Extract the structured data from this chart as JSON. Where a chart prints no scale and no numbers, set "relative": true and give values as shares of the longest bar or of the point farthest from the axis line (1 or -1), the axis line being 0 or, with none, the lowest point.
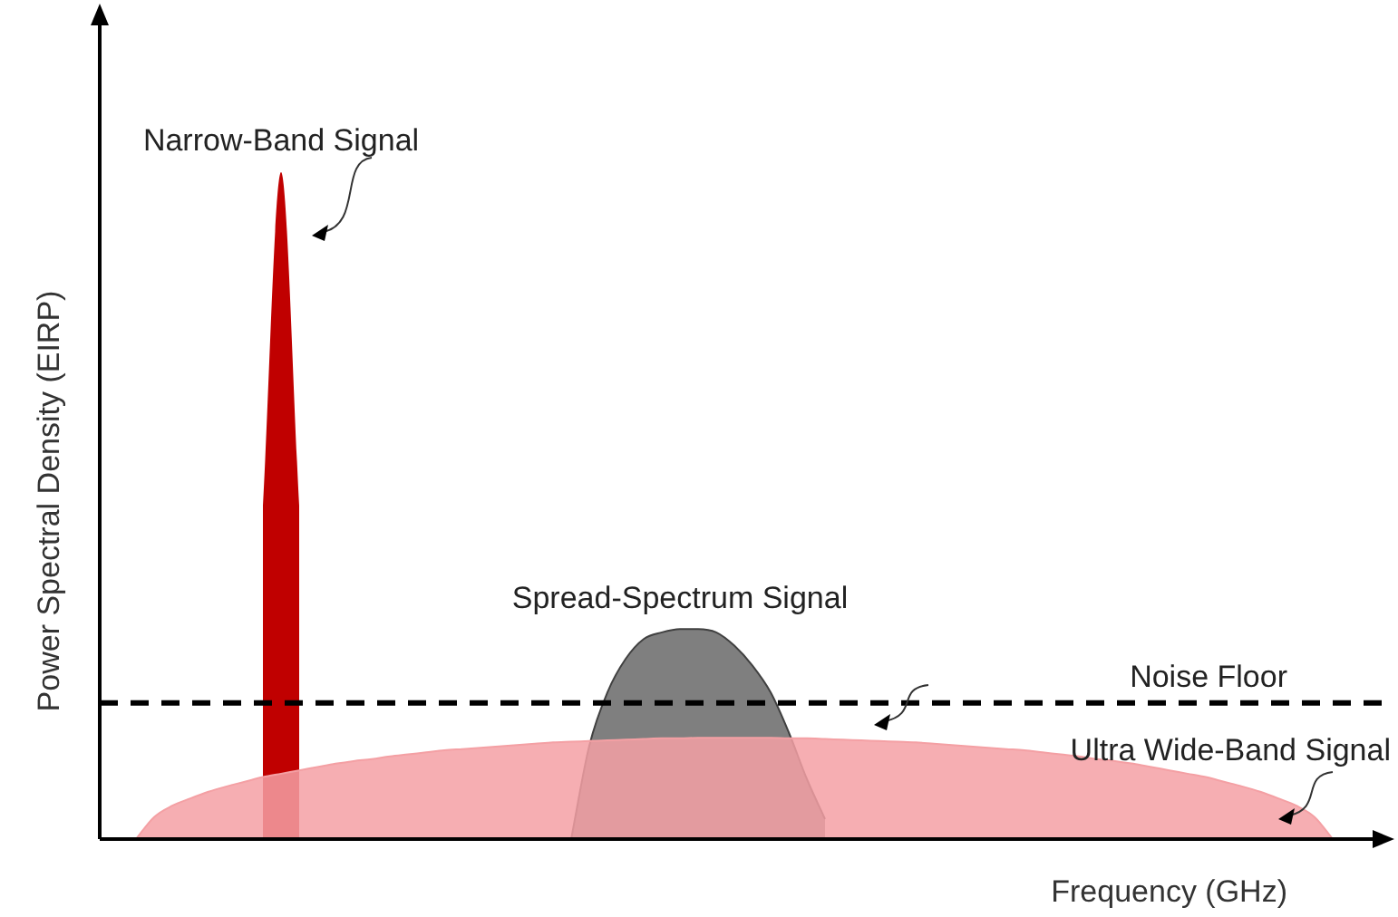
{
  "chart_data": {
    "type": "area",
    "relative": true,
    "xlabel": "Frequency (GHz)",
    "ylabel": "Power Spectral Density (EIRP)",
    "categories": [
      null,
      null,
      null,
      null,
      null,
      null,
      null,
      null,
      null,
      null,
      null,
      null,
      null,
      null,
      null,
      null,
      null,
      null,
      null,
      null,
      null,
      null,
      null,
      null,
      null,
      null,
      null,
      null,
      null,
      null,
      null,
      null,
      null,
      null,
      null,
      null,
      null,
      null,
      null,
      null,
      null,
      null,
      null,
      null,
      null,
      null,
      null,
      null,
      null,
      null,
      null,
      null,
      null,
      null,
      null,
      null,
      null,
      null,
      null,
      null,
      null,
      null,
      null,
      null,
      null,
      null,
      null,
      null,
      null,
      null,
      null
    ],
    "series": [
      {
        "name": "Narrow-Band Signal",
        "color": "#c00000",
        "values": [
          null,
          null,
          null,
          null,
          null,
          null,
          null,
          null,
          null,
          0.5,
          1,
          0.5,
          null,
          null,
          null,
          null,
          null,
          null,
          null,
          null,
          null,
          null,
          null,
          null,
          null,
          null,
          null,
          null,
          null,
          null,
          null,
          null,
          null,
          null,
          null,
          null,
          null,
          null,
          null,
          null,
          null,
          null,
          null,
          null,
          null,
          null,
          null,
          null,
          null,
          null,
          null,
          null,
          null,
          null,
          null,
          null,
          null,
          null,
          null,
          null,
          null,
          null,
          null,
          null,
          null,
          null,
          null,
          null,
          null,
          null,
          null
        ]
      },
      {
        "name": "Spread-Spectrum Signal",
        "color": "#7f7f7f",
        "values": [
          null,
          null,
          null,
          null,
          null,
          null,
          null,
          null,
          null,
          null,
          null,
          null,
          null,
          null,
          null,
          null,
          null,
          null,
          null,
          null,
          null,
          null,
          null,
          null,
          null,
          null,
          0,
          0.14,
          0.22,
          0.27,
          0.3,
          0.31,
          0.315,
          0.315,
          0.31,
          0.29,
          0.26,
          0.22,
          0.16,
          0.09,
          0.03,
          null,
          null,
          null,
          null,
          null,
          null,
          null,
          null,
          null,
          null,
          null,
          null,
          null,
          null,
          null,
          null,
          null,
          null,
          null,
          null,
          null,
          null,
          null,
          null,
          null,
          null,
          null,
          null,
          null,
          null
        ]
      },
      {
        "name": "Ultra Wide-Band Signal",
        "color": "#f4a0a4",
        "values": [
          null,
          null,
          0,
          0.033,
          0.05,
          0.061,
          0.071,
          0.079,
          0.086,
          0.093,
          0.098,
          0.103,
          0.108,
          0.113,
          0.117,
          0.12,
          0.124,
          0.127,
          0.13,
          0.133,
          0.135,
          0.137,
          0.139,
          0.141,
          0.143,
          0.145,
          0.146,
          0.147,
          0.148,
          0.149,
          0.15,
          0.151,
          0.151,
          0.152,
          0.152,
          0.152,
          0.152,
          0.152,
          0.151,
          0.151,
          0.15,
          0.149,
          0.148,
          0.147,
          0.146,
          0.145,
          0.143,
          0.141,
          0.139,
          0.137,
          0.135,
          0.133,
          0.13,
          0.127,
          0.124,
          0.12,
          0.117,
          0.113,
          0.108,
          0.103,
          0.098,
          0.093,
          0.086,
          0.079,
          0.071,
          0.061,
          0.05,
          0.033,
          0,
          null,
          null
        ]
      }
    ],
    "ref_lines": [
      {
        "axis": "y",
        "value": 0.204,
        "label": "Noise Floor",
        "color": "#000000",
        "line_style": "dashed"
      }
    ]
  }
}
